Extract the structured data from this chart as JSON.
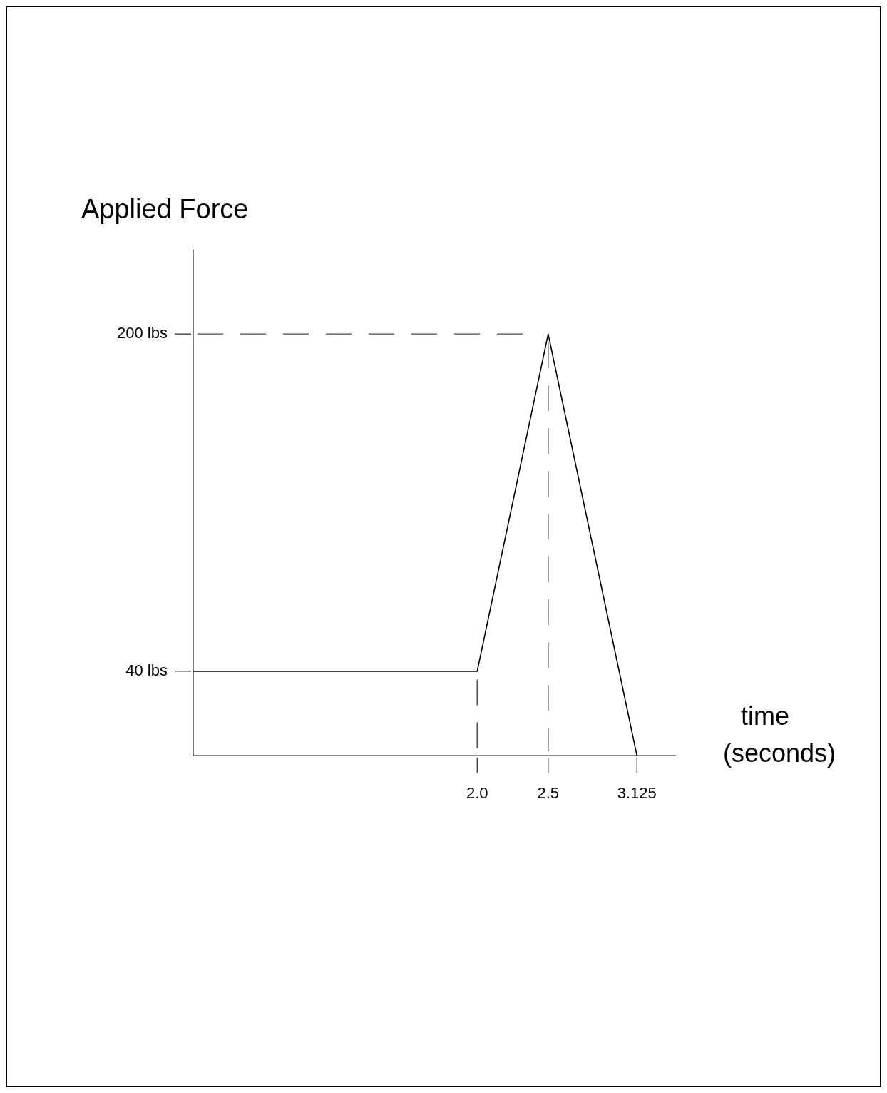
{
  "chart_data": {
    "type": "line",
    "ylabel": "Applied Force",
    "xlabel": "time (seconds)",
    "x": [
      0,
      2.0,
      2.5,
      3.125
    ],
    "series": [
      {
        "color": "#000000",
        "values": [
          40,
          40,
          200,
          0
        ]
      }
    ],
    "xlim": [
      0,
      3.4
    ],
    "ylim": [
      0,
      240
    ],
    "xticks": [
      {
        "value": 2.0,
        "label": "2.0"
      },
      2.5,
      3.125
    ],
    "yticks": [
      {
        "value": 40,
        "label": "40 lbs"
      },
      {
        "value": 200,
        "label": "200 lbs"
      }
    ],
    "ref_lines": [
      {
        "axis": "y",
        "value": 200,
        "line_style": "dashed",
        "color": "#444444"
      },
      {
        "axis": "x",
        "value": 2.0,
        "line_style": "dashed",
        "color": "#444444"
      },
      {
        "axis": "x",
        "value": 2.5,
        "line_style": "dashed",
        "color": "#444444"
      }
    ],
    "grid": false,
    "marker": "none",
    "line_style": "solid"
  }
}
